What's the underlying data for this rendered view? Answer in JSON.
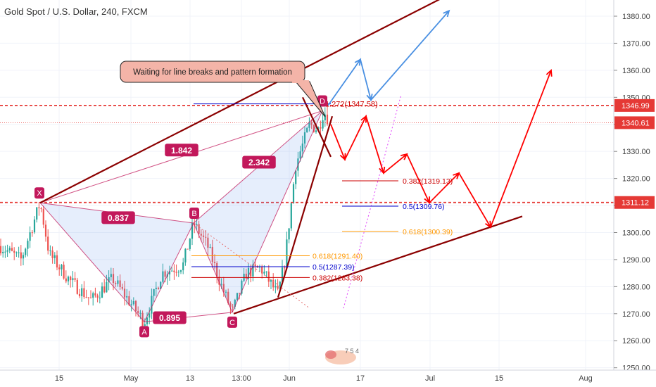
{
  "title": "Gold Spot / U.S. Dollar, 240, FXCM",
  "colors": {
    "up": "#26a69a",
    "down": "#ef5350",
    "pattern": "#c2185b",
    "trend": "#8b0000",
    "red_level": "#ff0000",
    "blue_arrow": "#4a90e2",
    "red_arrow": "#ff0000",
    "fib_618": "#ff9800",
    "fib_05": "#0000cc",
    "fib_382": "#cc0000"
  },
  "chart_data": {
    "type": "candlestick",
    "y_axis": {
      "ticks": [
        1250.0,
        1260.0,
        1270.0,
        1280.0,
        1290.0,
        1300.0,
        1310.0,
        1320.0,
        1330.0,
        1340.0,
        1350.0,
        1360.0,
        1370.0,
        1380.0
      ],
      "range": [
        1246,
        1386
      ]
    },
    "x_axis": {
      "ticks": [
        "15",
        "May",
        "13",
        "13:00",
        "Jun",
        "17",
        "Jul",
        "15",
        "Aug"
      ]
    },
    "price_labels": [
      {
        "value": 1346.99,
        "text": "1346.99",
        "color": "#e53935"
      },
      {
        "value": 1340.61,
        "text": "1340.61",
        "color": "#e53935"
      },
      {
        "value": 1311.12,
        "text": "1311.12",
        "color": "#e53935"
      }
    ],
    "pattern_points": [
      {
        "label": "X",
        "price": 1311.0
      },
      {
        "label": "A",
        "price": 1267.0
      },
      {
        "label": "B",
        "price": 1303.5
      },
      {
        "label": "C",
        "price": 1270.5
      },
      {
        "label": "D",
        "price": 1345.0
      }
    ],
    "pattern_ratios": [
      "1.842",
      "0.837",
      "2.342",
      "0.895"
    ],
    "fib_levels_left": [
      {
        "text": "0.618(1291.40)",
        "value": 1291.4,
        "color": "#ff9800"
      },
      {
        "text": "0.5(1287.39)",
        "value": 1287.39,
        "color": "#0000cc"
      },
      {
        "text": "0.382(1283.38)",
        "value": 1283.38,
        "color": "#cc0000"
      }
    ],
    "fib_levels_right": [
      {
        "text": "0.382(1319.13)",
        "value": 1319.13,
        "color": "#cc0000"
      },
      {
        "text": "0.5(1309.76)",
        "value": 1309.76,
        "color": "#0000cc"
      },
      {
        "text": "0.618(1300.39)",
        "value": 1300.39,
        "color": "#ff9800"
      }
    ],
    "extension": {
      "text": "1.272(1347.58)",
      "value": 1347.58
    },
    "annotation": "Waiting for line breaks and pattern formation",
    "watermark": "7 5 4"
  }
}
